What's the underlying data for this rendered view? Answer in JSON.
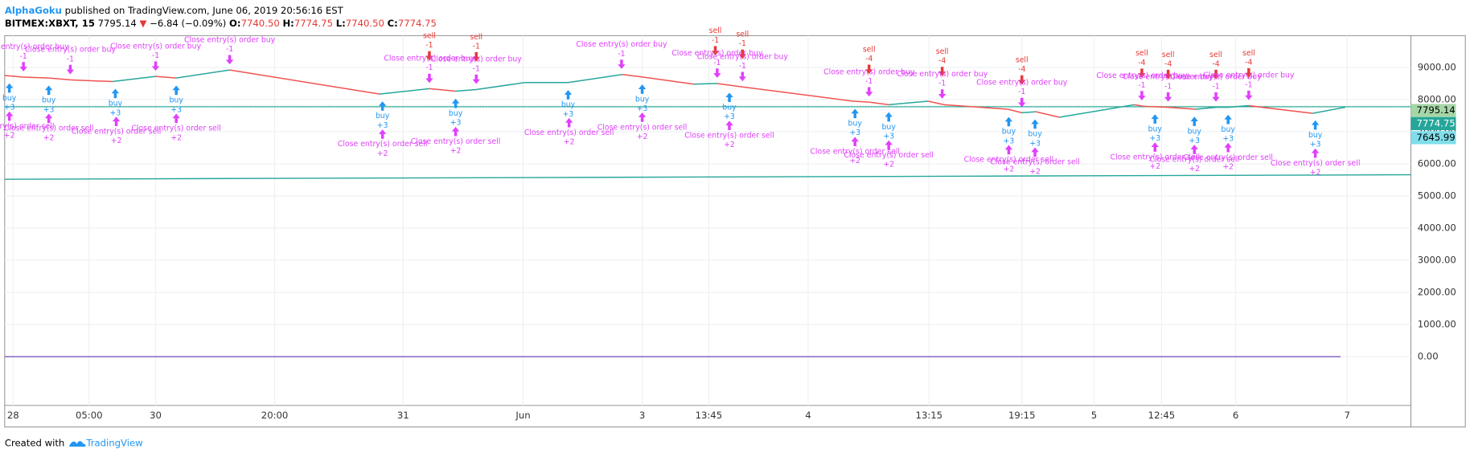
{
  "header": {
    "author": "AlphaGoku",
    "published": "published on TradingView.com, June 06, 2019 20:56:16 EST",
    "symbol": "BITMEX:XBXT, 15",
    "last": "7795.14",
    "arrow": "▼",
    "change": "−6.84 (−0.09%)",
    "o_label": "O:",
    "o": "7740.50",
    "h_label": "H:",
    "h": "7774.75",
    "l_label": "L:",
    "l": "7740.50",
    "c_label": "C:",
    "c": "7774.75"
  },
  "footer": {
    "created": "Created with",
    "brand": "TradingView"
  },
  "chart_data": {
    "type": "line",
    "xlim": [
      0,
      1500
    ],
    "ylim": [
      -1520,
      9990
    ],
    "yticks": [
      {
        "value": 0,
        "label": "0.00"
      },
      {
        "value": 1000,
        "label": "1000.00"
      },
      {
        "value": 2000,
        "label": "2000.00"
      },
      {
        "value": 3000,
        "label": "3000.00"
      },
      {
        "value": 4000,
        "label": "4000.00"
      },
      {
        "value": 5000,
        "label": "5000.00"
      },
      {
        "value": 6000,
        "label": "6000.00"
      },
      {
        "value": 7000,
        "label": "7000.00"
      },
      {
        "value": 8000,
        "label": "8000.00"
      },
      {
        "value": 9000,
        "label": "9000.00"
      }
    ],
    "xticks": [
      {
        "value": 9,
        "label": "28"
      },
      {
        "value": 90,
        "label": "05:00"
      },
      {
        "value": 161,
        "label": "30"
      },
      {
        "value": 288,
        "label": "20:00"
      },
      {
        "value": 425,
        "label": "31"
      },
      {
        "value": 553,
        "label": "Jun"
      },
      {
        "value": 680,
        "label": "3"
      },
      {
        "value": 751,
        "label": "13:45"
      },
      {
        "value": 857,
        "label": "4"
      },
      {
        "value": 986,
        "label": "13:15"
      },
      {
        "value": 1085,
        "label": "19:15"
      },
      {
        "value": 1162,
        "label": "5"
      },
      {
        "value": 1234,
        "label": "12:45"
      },
      {
        "value": 1313,
        "label": "6"
      },
      {
        "value": 1432,
        "label": "7"
      }
    ],
    "grid": true,
    "up_color": "#26a69a",
    "down_color": "#ef5350",
    "x": [
      0,
      20,
      47,
      71,
      115,
      161,
      183,
      240,
      400,
      453,
      481,
      503,
      555,
      601,
      659,
      681,
      735,
      760,
      788,
      905,
      922,
      943,
      985,
      1002,
      1070,
      1085,
      1100,
      1125,
      1205,
      1215,
      1241,
      1270,
      1292,
      1305,
      1327,
      1395,
      1430
    ],
    "values": [
      8750,
      8700,
      8670,
      8610,
      8560,
      8720,
      8670,
      8920,
      8170,
      8340,
      8260,
      8310,
      8530,
      8530,
      8780,
      8700,
      8480,
      8500,
      8390,
      7950,
      7920,
      7840,
      7950,
      7840,
      7700,
      7590,
      7620,
      7450,
      7840,
      7790,
      7760,
      7700,
      7760,
      7760,
      7810,
      7570,
      7760
    ],
    "flat_series": [
      {
        "color": "#26a69a",
        "x": [
          0,
          1500
        ],
        "values": [
          5520,
          5660
        ]
      },
      {
        "color": "#7e57c2",
        "x": [
          0,
          1425
        ],
        "values": [
          0,
          0
        ]
      }
    ],
    "price_lines": [
      {
        "value": 7795.14,
        "color": "#a5d6a7",
        "text_color": "#000",
        "dotted": true
      },
      {
        "value": 7774.75,
        "color": "#26a69a",
        "text_color": "#fff",
        "dotted": false
      },
      {
        "value": 7645.99,
        "color": "#80deea",
        "text_color": "#000",
        "dotted": false
      }
    ],
    "signals": [
      {
        "x": 5,
        "kind": "buy",
        "label": "buy",
        "qty": "+3"
      },
      {
        "x": 5,
        "kind": "close-sell",
        "label": "Close entry(s) order sell",
        "qty": "+2"
      },
      {
        "x": 20,
        "kind": "close-buy",
        "label": "Close entry(s) order buy",
        "qty": "-1"
      },
      {
        "x": 47,
        "kind": "buy",
        "label": "buy",
        "qty": "+3"
      },
      {
        "x": 47,
        "kind": "close-sell",
        "label": "Close entry(s) order sell",
        "qty": "+2"
      },
      {
        "x": 70,
        "kind": "close-buy",
        "label": "Close entry(s) order buy",
        "qty": "-1"
      },
      {
        "x": 118,
        "kind": "buy",
        "label": "buy",
        "qty": "+3"
      },
      {
        "x": 119,
        "kind": "close-sell",
        "label": "Close entry(s) order sell",
        "qty": "+2"
      },
      {
        "x": 161,
        "kind": "close-buy",
        "label": "Close entry(s) order buy",
        "qty": "-1"
      },
      {
        "x": 183,
        "kind": "buy",
        "label": "buy",
        "qty": "+3"
      },
      {
        "x": 183,
        "kind": "close-sell",
        "label": "Close entry(s) order sell",
        "qty": "+2"
      },
      {
        "x": 240,
        "kind": "close-buy",
        "label": "Close entry(s) order buy",
        "qty": "-1"
      },
      {
        "x": 403,
        "kind": "buy",
        "label": "buy",
        "qty": "+3"
      },
      {
        "x": 403,
        "kind": "close-sell",
        "label": "Close entry(s) order sell",
        "qty": "+2"
      },
      {
        "x": 453,
        "kind": "sell",
        "label": "sell",
        "qty": "-1"
      },
      {
        "x": 453,
        "kind": "close-buy",
        "label": "Close entry(s) order buy",
        "qty": "-1"
      },
      {
        "x": 481,
        "kind": "buy",
        "label": "buy",
        "qty": "+3"
      },
      {
        "x": 481,
        "kind": "close-sell",
        "label": "Close entry(s) order sell",
        "qty": "+2"
      },
      {
        "x": 503,
        "kind": "sell",
        "label": "sell",
        "qty": "-1"
      },
      {
        "x": 503,
        "kind": "close-buy",
        "label": "Close entry(s) order buy",
        "qty": "-1"
      },
      {
        "x": 601,
        "kind": "buy",
        "label": "buy",
        "qty": "+3"
      },
      {
        "x": 602,
        "kind": "close-sell",
        "label": "Close entry(s) order sell",
        "qty": "+2"
      },
      {
        "x": 658,
        "kind": "close-buy",
        "label": "Close entry(s) order buy",
        "qty": "-1"
      },
      {
        "x": 680,
        "kind": "buy",
        "label": "buy",
        "qty": "+3"
      },
      {
        "x": 680,
        "kind": "close-sell",
        "label": "Close entry(s) order sell",
        "qty": "+2"
      },
      {
        "x": 758,
        "kind": "sell",
        "label": "sell",
        "qty": "-1"
      },
      {
        "x": 760,
        "kind": "close-buy",
        "label": "Close entry(s) order buy",
        "qty": "-1"
      },
      {
        "x": 773,
        "kind": "buy",
        "label": "buy",
        "qty": "+3"
      },
      {
        "x": 773,
        "kind": "close-sell",
        "label": "Close entry(s) order sell",
        "qty": "+2"
      },
      {
        "x": 787,
        "kind": "sell",
        "label": "sell",
        "qty": "-1"
      },
      {
        "x": 787,
        "kind": "close-buy",
        "label": "Close entry(s) order buy",
        "qty": "-1"
      },
      {
        "x": 907,
        "kind": "buy",
        "label": "buy",
        "qty": "+3"
      },
      {
        "x": 907,
        "kind": "close-sell",
        "label": "Close entry(s) order sell",
        "qty": "+2"
      },
      {
        "x": 922,
        "kind": "sell",
        "label": "sell",
        "qty": "-4"
      },
      {
        "x": 922,
        "kind": "close-buy",
        "label": "Close entry(s) order buy",
        "qty": "-1"
      },
      {
        "x": 943,
        "kind": "buy",
        "label": "buy",
        "qty": "+3"
      },
      {
        "x": 943,
        "kind": "close-sell",
        "label": "Close entry(s) order sell",
        "qty": "+2"
      },
      {
        "x": 1000,
        "kind": "sell",
        "label": "sell",
        "qty": "-4"
      },
      {
        "x": 1000,
        "kind": "close-buy",
        "label": "Close entry(s) order buy",
        "qty": "-1"
      },
      {
        "x": 1071,
        "kind": "buy",
        "label": "buy",
        "qty": "+3"
      },
      {
        "x": 1071,
        "kind": "close-sell",
        "label": "Close entry(s) order sell",
        "qty": "+2"
      },
      {
        "x": 1085,
        "kind": "sell",
        "label": "sell",
        "qty": "-4"
      },
      {
        "x": 1085,
        "kind": "close-buy",
        "label": "Close entry(s) order buy",
        "qty": "-1"
      },
      {
        "x": 1099,
        "kind": "buy",
        "label": "buy",
        "qty": "+3"
      },
      {
        "x": 1099,
        "kind": "close-sell",
        "label": "Close entry(s) order sell",
        "qty": "+2"
      },
      {
        "x": 1213,
        "kind": "sell",
        "label": "sell",
        "qty": "-4"
      },
      {
        "x": 1213,
        "kind": "close-buy",
        "label": "Close entry(s) order buy",
        "qty": "-1"
      },
      {
        "x": 1227,
        "kind": "buy",
        "label": "buy",
        "qty": "+3"
      },
      {
        "x": 1227,
        "kind": "close-sell",
        "label": "Close entry(s) order sell",
        "qty": "+2"
      },
      {
        "x": 1241,
        "kind": "sell",
        "label": "sell",
        "qty": "-4"
      },
      {
        "x": 1241,
        "kind": "close-buy",
        "label": "Close entry(s) order buy",
        "qty": "-1"
      },
      {
        "x": 1269,
        "kind": "buy",
        "label": "buy",
        "qty": "+3"
      },
      {
        "x": 1269,
        "kind": "close-sell",
        "label": "Close entry(s) order sell",
        "qty": "+2"
      },
      {
        "x": 1292,
        "kind": "sell",
        "label": "sell",
        "qty": "-4"
      },
      {
        "x": 1292,
        "kind": "close-buy",
        "label": "Close entry(s) order buy",
        "qty": "-1"
      },
      {
        "x": 1305,
        "kind": "buy",
        "label": "buy",
        "qty": "+3"
      },
      {
        "x": 1305,
        "kind": "close-sell",
        "label": "Close entry(s) order sell",
        "qty": "+2"
      },
      {
        "x": 1327,
        "kind": "sell",
        "label": "sell",
        "qty": "-4"
      },
      {
        "x": 1327,
        "kind": "close-buy",
        "label": "Close entry(s) order buy",
        "qty": "-1"
      },
      {
        "x": 1398,
        "kind": "buy",
        "label": "buy",
        "qty": "+3"
      },
      {
        "x": 1398,
        "kind": "close-sell",
        "label": "Close entry(s) order sell",
        "qty": "+2"
      }
    ]
  }
}
